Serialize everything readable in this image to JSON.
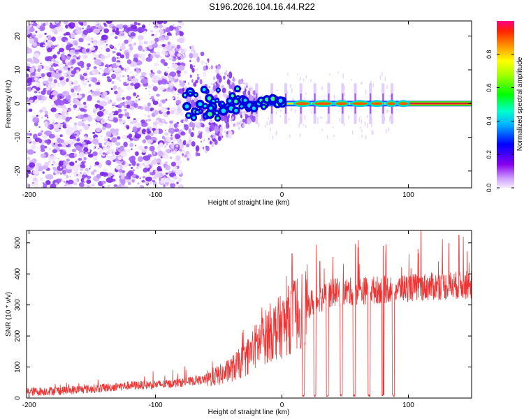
{
  "title": "S196.2026.104.16.44.R22",
  "chart_data": [
    {
      "type": "heatmap",
      "xlabel": "Height of straight line (km)",
      "ylabel": "Frequency (Hz)",
      "xlim": [
        -202,
        150
      ],
      "ylim": [
        -25,
        24.5
      ],
      "xticks": [
        -200,
        -100,
        0,
        100
      ],
      "yticks": [
        -20,
        -10,
        0,
        10,
        20
      ],
      "colorbar": {
        "label": "Normalized spectral amplitude",
        "range": [
          0.0,
          1.0
        ],
        "ticks": [
          "0.0",
          "0.2",
          "0.4",
          "0.6",
          "0.8"
        ],
        "tick_values": [
          0.0,
          0.2,
          0.4,
          0.6,
          0.8
        ]
      },
      "features": {
        "noise_region_km": [
          -202,
          -78
        ],
        "transition_region_km": [
          -78,
          -20
        ],
        "carrier_line_start_km": -30,
        "carrier_frequency_hz": 0,
        "blobs_km": [
          -75,
          -70,
          -65,
          -60,
          -55,
          -50,
          -45,
          -40,
          -35,
          -30,
          -25,
          -20,
          -15,
          -10,
          -5,
          0
        ],
        "bright_segments_km": [
          [
            10,
            22
          ],
          [
            25,
            40
          ],
          [
            42,
            52
          ],
          [
            55,
            68
          ],
          [
            70,
            80
          ],
          [
            83,
            90
          ],
          [
            92,
            100
          ]
        ],
        "vertical_streaks_km": [
          -20,
          -8,
          3,
          15,
          26,
          37,
          48,
          58,
          70,
          80,
          87
        ]
      }
    },
    {
      "type": "line",
      "xlabel": "Height of straight line (km)",
      "ylabel": "SNR (10 * v/v)",
      "xlim": [
        -202,
        150
      ],
      "ylim": [
        0,
        540
      ],
      "xticks": [
        -200,
        -100,
        0,
        100
      ],
      "yticks": [
        0,
        100,
        200,
        300,
        400,
        500
      ],
      "series_color": "#ee3333",
      "trend_points": [
        {
          "x": -202,
          "y": 20
        },
        {
          "x": -170,
          "y": 25
        },
        {
          "x": -150,
          "y": 30
        },
        {
          "x": -120,
          "y": 40
        },
        {
          "x": -90,
          "y": 45
        },
        {
          "x": -60,
          "y": 60
        },
        {
          "x": -45,
          "y": 80
        },
        {
          "x": -30,
          "y": 120
        },
        {
          "x": -20,
          "y": 170
        },
        {
          "x": -10,
          "y": 210
        },
        {
          "x": 0,
          "y": 230
        },
        {
          "x": 10,
          "y": 270
        },
        {
          "x": 20,
          "y": 300
        },
        {
          "x": 30,
          "y": 320
        },
        {
          "x": 40,
          "y": 340
        },
        {
          "x": 60,
          "y": 345
        },
        {
          "x": 80,
          "y": 350
        },
        {
          "x": 100,
          "y": 355
        },
        {
          "x": 120,
          "y": 360
        },
        {
          "x": 150,
          "y": 365
        }
      ],
      "dropouts_km": [
        17,
        26,
        36,
        47,
        57,
        69,
        80,
        88
      ],
      "peak_spikes": [
        {
          "x": 8,
          "y": 465
        },
        {
          "x": 30,
          "y": 440
        },
        {
          "x": 60,
          "y": 485
        },
        {
          "x": 80,
          "y": 490
        },
        {
          "x": 110,
          "y": 540
        },
        {
          "x": 140,
          "y": 525
        }
      ]
    }
  ]
}
